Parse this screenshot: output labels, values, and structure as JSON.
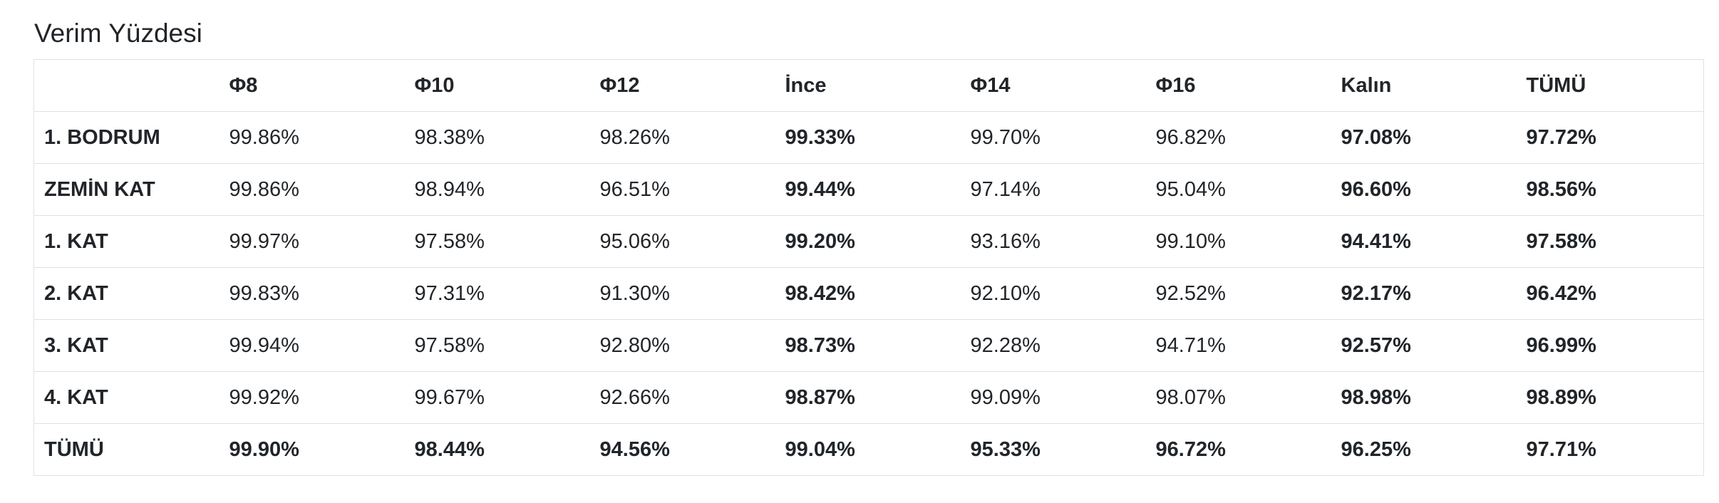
{
  "title": "Verim Yüzdesi",
  "table": {
    "headers": [
      "",
      "Φ8",
      "Φ10",
      "Φ12",
      "İnce",
      "Φ14",
      "Φ16",
      "Kalın",
      "TÜMÜ"
    ],
    "bold_columns": [
      4,
      7,
      8
    ],
    "rows": [
      {
        "label": "1. BODRUM",
        "values": [
          "99.86%",
          "98.38%",
          "98.26%",
          "99.33%",
          "99.70%",
          "96.82%",
          "97.08%",
          "97.72%"
        ]
      },
      {
        "label": "ZEMİN KAT",
        "values": [
          "99.86%",
          "98.94%",
          "96.51%",
          "99.44%",
          "97.14%",
          "95.04%",
          "96.60%",
          "98.56%"
        ]
      },
      {
        "label": "1. KAT",
        "values": [
          "99.97%",
          "97.58%",
          "95.06%",
          "99.20%",
          "93.16%",
          "99.10%",
          "94.41%",
          "97.58%"
        ]
      },
      {
        "label": "2. KAT",
        "values": [
          "99.83%",
          "97.31%",
          "91.30%",
          "98.42%",
          "92.10%",
          "92.52%",
          "92.17%",
          "96.42%"
        ]
      },
      {
        "label": "3. KAT",
        "values": [
          "99.94%",
          "97.58%",
          "92.80%",
          "98.73%",
          "92.28%",
          "94.71%",
          "92.57%",
          "96.99%"
        ]
      },
      {
        "label": "4. KAT",
        "values": [
          "99.92%",
          "99.67%",
          "92.66%",
          "98.87%",
          "99.09%",
          "98.07%",
          "98.98%",
          "98.89%"
        ]
      },
      {
        "label": "TÜMÜ",
        "values": [
          "99.90%",
          "98.44%",
          "94.56%",
          "99.04%",
          "95.33%",
          "96.72%",
          "96.25%",
          "97.71%"
        ],
        "total": true
      }
    ]
  }
}
